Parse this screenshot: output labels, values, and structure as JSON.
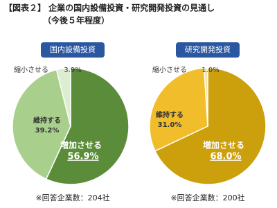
{
  "title": "【図表２】 企業の国内設備投資・研究開発投資の見通し",
  "subtitle": "（今後５年程度）",
  "chart_data": [
    {
      "type": "pie",
      "title": "国内設備投資",
      "categories": [
        "増加させる",
        "維持する",
        "縮小させる"
      ],
      "values": [
        56.9,
        39.2,
        3.9
      ],
      "value_labels": [
        "56.9%",
        "39.2%",
        "3.9%"
      ],
      "colors": [
        "#5b8c3a",
        "#a9cf8d",
        "#dcedd0"
      ],
      "note": "※回答企業数：204社"
    },
    {
      "type": "pie",
      "title": "研究開発投資",
      "categories": [
        "増加させる",
        "維持する",
        "縮小させる"
      ],
      "values": [
        68.0,
        31.0,
        1.0
      ],
      "value_labels": [
        "68.0%",
        "31.0%",
        "1.0%"
      ],
      "colors": [
        "#cc9f0c",
        "#f2bd2b",
        "#f6e3a6"
      ],
      "note": "※回答企業数：200社"
    }
  ]
}
